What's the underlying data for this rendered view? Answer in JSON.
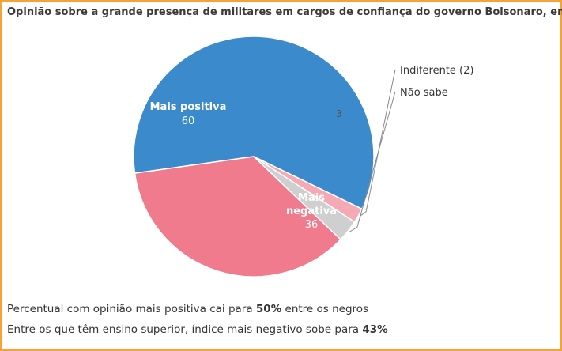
{
  "chart_data": {
    "type": "pie",
    "title": "Opinião sobre a grande presença de militares em cargos de confiança do governo Bolsonaro, em %",
    "slices": [
      {
        "name": "Mais positiva",
        "value": 60,
        "value_label": "60",
        "color": "#3b8bcc",
        "label_position": "inside"
      },
      {
        "name": "Indiferente",
        "value": 2,
        "value_label": "Indiferente (2)",
        "color": "#f4a9b4",
        "label_position": "outside"
      },
      {
        "name": "Não sabe",
        "value": 3,
        "value_label": "3",
        "color": "#cfcfcf",
        "label_position": "outside"
      },
      {
        "name": "Mais negativa",
        "value": 36,
        "value_label": "36",
        "color": "#ef7b8c",
        "label_position": "inside"
      }
    ],
    "inside_labels": {
      "mais_positiva": [
        "Mais positiva",
        "60"
      ],
      "mais_negativa": [
        "Mais",
        "negativa",
        "36"
      ]
    }
  },
  "notes": [
    {
      "before": "Percentual com opinião mais positiva cai para ",
      "bold": "50%",
      "after": " entre os negros"
    },
    {
      "before": "Entre os que têm ensino superior, índice mais negativo sobe para ",
      "bold": "43%",
      "after": ""
    }
  ],
  "colors": {
    "frame": "#f5a236",
    "text": "#333333"
  }
}
